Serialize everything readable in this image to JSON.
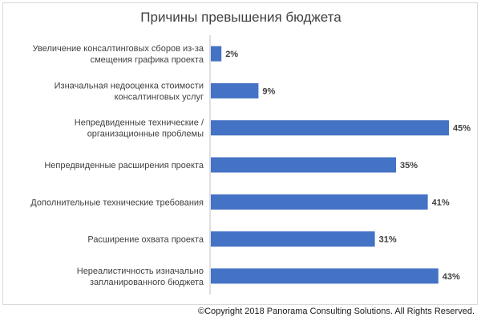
{
  "chart_data": {
    "type": "bar",
    "orientation": "horizontal",
    "title": "Причины превышения бюджета",
    "categories": [
      [
        "Увеличение консалтинговых сборов из-за",
        "смещения графика проекта"
      ],
      [
        "Изначальная недооценка стоимости",
        "консалтинговых услуг"
      ],
      [
        "Непредвиденные технические /",
        "организационные проблемы"
      ],
      [
        "Непредвиденные расширения проекта"
      ],
      [
        "Дополнительные технические требования"
      ],
      [
        "Расширение охвата проекта"
      ],
      [
        "Нереалистичность изначально",
        "запланированного бюджета"
      ]
    ],
    "values": [
      2,
      9,
      45,
      35,
      41,
      31,
      43
    ],
    "value_labels": [
      "2%",
      "9%",
      "45%",
      "35%",
      "41%",
      "31%",
      "43%"
    ],
    "xlim": [
      0,
      45
    ],
    "grid": false,
    "bar_color": "#4472C4",
    "axis_color": "#bfbfbf"
  },
  "footer": {
    "copyright": "©Copyright 2018 Panorama Consulting Solutions.  All Rights Reserved."
  }
}
